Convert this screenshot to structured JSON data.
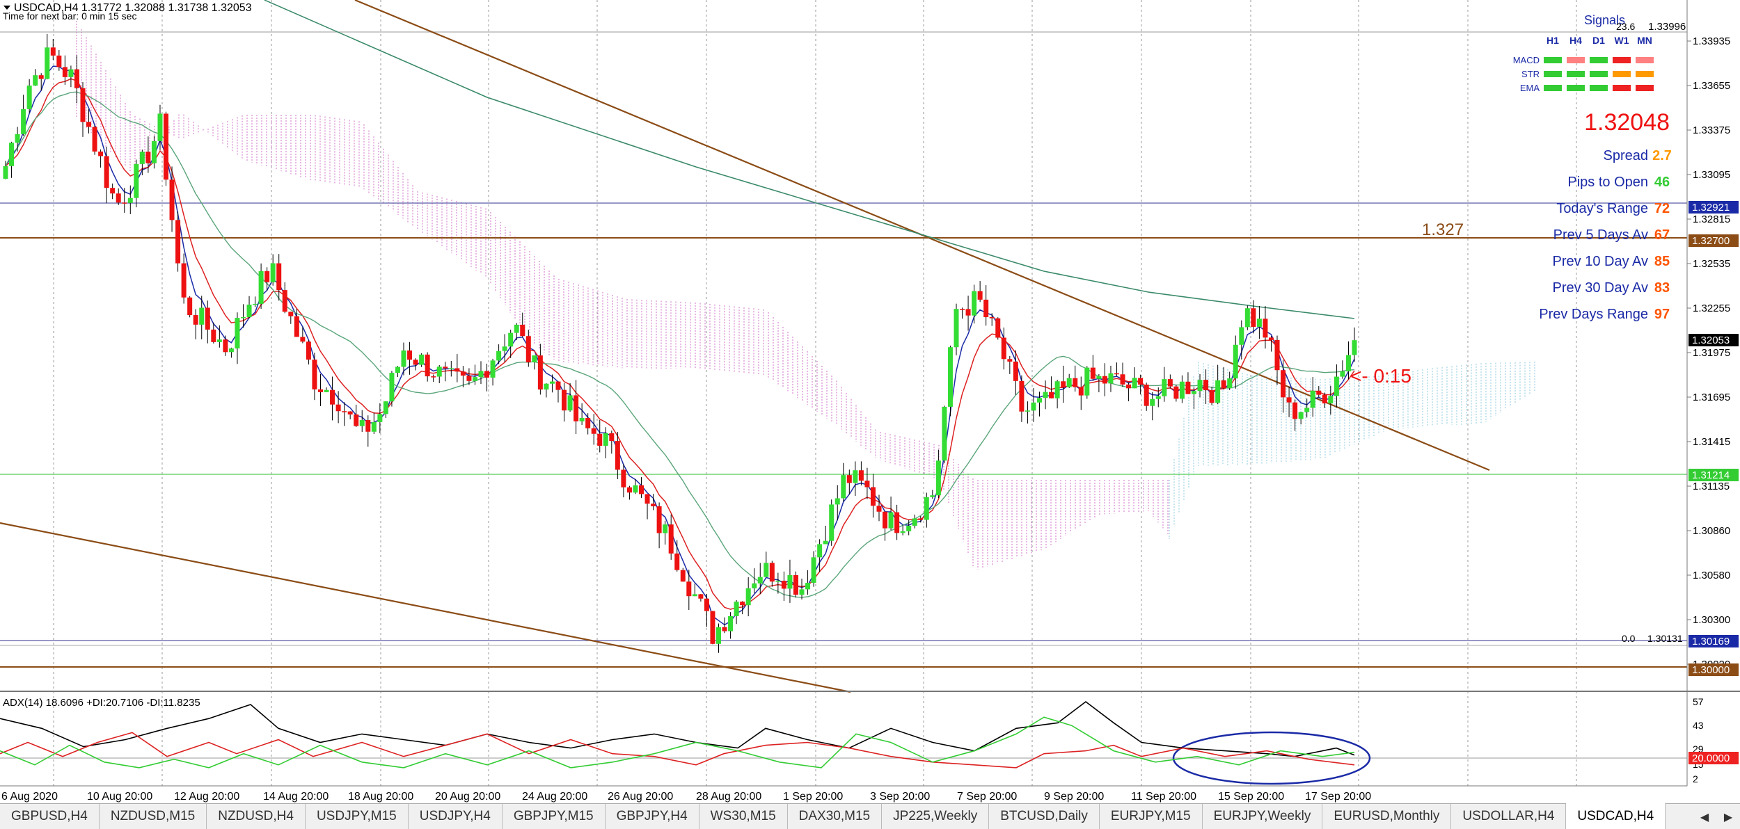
{
  "header": {
    "symbol_line": "USDCAD,H4  1.31772 1.32088 1.31738 1.32053",
    "timer_line": "Time for next bar: 0 min 15 sec"
  },
  "signals": {
    "title": "Signals",
    "fib_label": "23.6",
    "fib_value": "1.33996",
    "timeframes": [
      "H1",
      "H4",
      "D1",
      "W1",
      "MN"
    ],
    "rows": [
      {
        "name": "MACD",
        "colors": [
          "#33cc33",
          "#ff8080",
          "#33cc33",
          "#ee2222",
          "#ff8080"
        ]
      },
      {
        "name": "STR",
        "colors": [
          "#33cc33",
          "#33cc33",
          "#33cc33",
          "#ff9900",
          "#ff9900"
        ]
      },
      {
        "name": "EMA",
        "colors": [
          "#33cc33",
          "#33cc33",
          "#33cc33",
          "#ee2222",
          "#ee2222"
        ]
      }
    ]
  },
  "info": {
    "price": "1.32048",
    "stats": [
      {
        "label": "Spread",
        "value": "2.7",
        "color": "#ff9900"
      },
      {
        "label": "Pips to Open",
        "value": "46",
        "color": "#33cc33"
      },
      {
        "label": "Today's Range",
        "value": "72",
        "color": "#ff5500"
      },
      {
        "label": "Prev 5 Days Av",
        "value": "67",
        "color": "#ff5500"
      },
      {
        "label": "Prev 10 Day Av",
        "value": "85",
        "color": "#ff5500"
      },
      {
        "label": "Prev 30 Day Av",
        "value": "83",
        "color": "#ff5500"
      },
      {
        "label": "Prev Days Range",
        "value": "97",
        "color": "#ff5500"
      }
    ]
  },
  "annotations": {
    "level_1327": "1.327",
    "countdown": "<- 0:15",
    "fib_zero_label": "0.0",
    "fib_zero_value": "1.30131"
  },
  "price_axis": {
    "ticks": [
      "1.33935",
      "1.33655",
      "1.33375",
      "1.33095",
      "1.32815",
      "1.32535",
      "1.32255",
      "1.31975",
      "1.31695",
      "1.31415",
      "1.31135",
      "1.30860",
      "1.30580",
      "1.30300",
      "1.30020"
    ],
    "markers": [
      {
        "text": "1.32921",
        "bg": "#1a2aa6"
      },
      {
        "text": "1.32700",
        "bg": "#8b4c16"
      },
      {
        "text": "1.32053",
        "bg": "#000000"
      },
      {
        "text": "1.31214",
        "bg": "#33cc33"
      },
      {
        "text": "1.30169",
        "bg": "#1a2aa6"
      },
      {
        "text": "1.30000",
        "bg": "#8b4c16"
      }
    ]
  },
  "adx": {
    "label": "ADX(14) 18.6096 +DI:20.7106 -DI:11.8235",
    "ticks": [
      "57",
      "43",
      "29",
      "15",
      "2"
    ],
    "marker": {
      "text": "20.0000",
      "bg": "#ee2222"
    }
  },
  "time_axis": [
    "6 Aug 2020",
    "10 Aug 20:00",
    "12 Aug 20:00",
    "14 Aug 20:00",
    "18 Aug 20:00",
    "20 Aug 20:00",
    "24 Aug 20:00",
    "26 Aug 20:00",
    "28 Aug 20:00",
    "1 Sep 20:00",
    "3 Sep 20:00",
    "7 Sep 20:00",
    "9 Sep 20:00",
    "11 Sep 20:00",
    "15 Sep 20:00",
    "17 Sep 20:00"
  ],
  "tabs": [
    "GBPUSD,H4",
    "NZDUSD,M15",
    "NZDUSD,H4",
    "USDJPY,M15",
    "USDJPY,H4",
    "GBPJPY,M15",
    "GBPJPY,H4",
    "WS30,M15",
    "DAX30,M15",
    "JP225,Weekly",
    "BTCUSD,Daily",
    "EURJPY,M15",
    "EURJPY,Weekly",
    "EURUSD,Monthly",
    "USDOLLAR,H4",
    "USDCAD,H4"
  ],
  "active_tab": "USDCAD,H4",
  "chart_data": {
    "type": "candlestick",
    "symbol": "USDCAD",
    "timeframe": "H4",
    "ylim": [
      1.299,
      1.34
    ],
    "horizontal_levels": [
      1.32921,
      1.327,
      1.31214,
      1.30169,
      1.3
    ],
    "close_path": [
      {
        "t": "6 Aug",
        "c": 1.3315
      },
      {
        "t": "7 Aug",
        "c": 1.3365
      },
      {
        "t": "7 Aug b",
        "c": 1.3385
      },
      {
        "t": "10 Aug",
        "c": 1.337
      },
      {
        "t": "10 Aug 20:00",
        "c": 1.333
      },
      {
        "t": "11 Aug",
        "c": 1.329
      },
      {
        "t": "11 Aug b",
        "c": 1.331
      },
      {
        "t": "12 Aug",
        "c": 1.334
      },
      {
        "t": "12 Aug 20:00",
        "c": 1.323
      },
      {
        "t": "13 Aug",
        "c": 1.3215
      },
      {
        "t": "13 Aug b",
        "c": 1.32
      },
      {
        "t": "14 Aug",
        "c": 1.323
      },
      {
        "t": "14 Aug 20:00",
        "c": 1.325
      },
      {
        "t": "17 Aug",
        "c": 1.3215
      },
      {
        "t": "17 Aug b",
        "c": 1.318
      },
      {
        "t": "18 Aug",
        "c": 1.317
      },
      {
        "t": "18 Aug 20:00",
        "c": 1.3145
      },
      {
        "t": "19 Aug",
        "c": 1.316
      },
      {
        "t": "19 Aug b",
        "c": 1.32
      },
      {
        "t": "20 Aug",
        "c": 1.319
      },
      {
        "t": "20 Aug 20:00",
        "c": 1.318
      },
      {
        "t": "21 Aug",
        "c": 1.3175
      },
      {
        "t": "21 Aug b",
        "c": 1.3195
      },
      {
        "t": "24 Aug",
        "c": 1.3215
      },
      {
        "t": "24 Aug 20:00",
        "c": 1.3185
      },
      {
        "t": "25 Aug",
        "c": 1.3175
      },
      {
        "t": "25 Aug b",
        "c": 1.315
      },
      {
        "t": "26 Aug",
        "c": 1.3145
      },
      {
        "t": "26 Aug 20:00",
        "c": 1.312
      },
      {
        "t": "27 Aug",
        "c": 1.31
      },
      {
        "t": "27 Aug b",
        "c": 1.308
      },
      {
        "t": "28 Aug",
        "c": 1.305
      },
      {
        "t": "28 Aug 20:00",
        "c": 1.302
      },
      {
        "t": "31 Aug",
        "c": 1.304
      },
      {
        "t": "31 Aug b",
        "c": 1.306
      },
      {
        "t": "1 Sep",
        "c": 1.306
      },
      {
        "t": "1 Sep 20:00",
        "c": 1.305
      },
      {
        "t": "2 Sep",
        "c": 1.3085
      },
      {
        "t": "2 Sep b",
        "c": 1.312
      },
      {
        "t": "3 Sep",
        "c": 1.311
      },
      {
        "t": "3 Sep 20:00",
        "c": 1.309
      },
      {
        "t": "4 Sep",
        "c": 1.3095
      },
      {
        "t": "4 Sep b",
        "c": 1.311
      },
      {
        "t": "7 Sep",
        "c": 1.3225
      },
      {
        "t": "7 Sep 20:00",
        "c": 1.323
      },
      {
        "t": "8 Sep",
        "c": 1.32
      },
      {
        "t": "8 Sep b",
        "c": 1.316
      },
      {
        "t": "9 Sep",
        "c": 1.3165
      },
      {
        "t": "9 Sep 20:00",
        "c": 1.3175
      },
      {
        "t": "10 Sep",
        "c": 1.318
      },
      {
        "t": "10 Sep b",
        "c": 1.318
      },
      {
        "t": "11 Sep",
        "c": 1.3175
      },
      {
        "t": "11 Sep 20:00",
        "c": 1.317
      },
      {
        "t": "14 Sep",
        "c": 1.3175
      },
      {
        "t": "14 Sep b",
        "c": 1.318
      },
      {
        "t": "15 Sep",
        "c": 1.317
      },
      {
        "t": "15 Sep 20:00",
        "c": 1.3225
      },
      {
        "t": "16 Sep",
        "c": 1.321
      },
      {
        "t": "16 Sep b",
        "c": 1.316
      },
      {
        "t": "17 Sep",
        "c": 1.3165
      },
      {
        "t": "17 Sep 20:00",
        "c": 1.31772
      },
      {
        "t": "18 Sep",
        "c": 1.32053
      }
    ]
  }
}
